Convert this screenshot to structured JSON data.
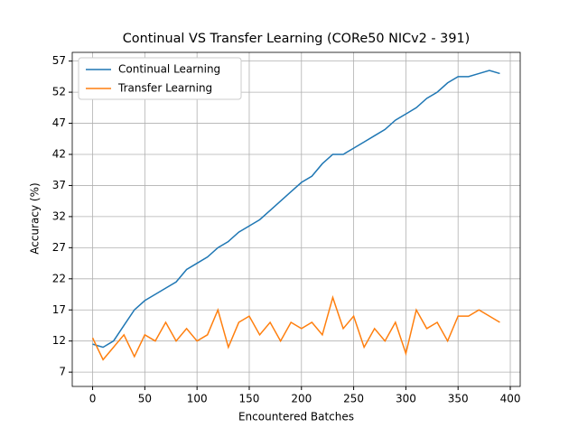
{
  "chart_data": {
    "type": "line",
    "title": "Continual VS Transfer Learning (CORe50 NICv2 - 391)",
    "xlabel": "Encountered Batches",
    "ylabel": "Accuracy (%)",
    "x": [
      0,
      10,
      20,
      30,
      40,
      50,
      60,
      70,
      80,
      90,
      100,
      110,
      120,
      130,
      140,
      150,
      160,
      170,
      180,
      190,
      200,
      210,
      220,
      230,
      240,
      250,
      260,
      270,
      280,
      290,
      300,
      310,
      320,
      330,
      340,
      350,
      360,
      370,
      380,
      390
    ],
    "series": [
      {
        "name": "Continual Learning",
        "color": "#1f77b4",
        "values": [
          11.5,
          11,
          12,
          14.5,
          17,
          18.5,
          19.5,
          20.5,
          21.5,
          23.5,
          24.5,
          25.5,
          27,
          28,
          29.5,
          30.5,
          31.5,
          33,
          34.5,
          36,
          37.5,
          38.5,
          40.5,
          42,
          42,
          43,
          44,
          45,
          46,
          47.5,
          48.5,
          49.5,
          51,
          52,
          53.5,
          54.5,
          54.5,
          55,
          55.5,
          55
        ]
      },
      {
        "name": "Transfer Learning",
        "color": "#ff7f0e",
        "values": [
          12.5,
          9,
          11,
          13,
          9.5,
          13,
          12,
          15,
          12,
          14,
          12,
          13,
          17,
          11,
          15,
          16,
          13,
          15,
          12,
          15,
          14,
          15,
          13,
          19,
          14,
          16,
          11,
          14,
          12,
          15,
          10,
          17,
          14,
          15,
          12,
          16,
          16,
          17,
          16,
          15
        ]
      }
    ],
    "xlim": [
      -19.5,
      409.5
    ],
    "xticks": [
      0,
      50,
      100,
      150,
      200,
      250,
      300,
      350,
      400
    ],
    "ylim": [
      4.7,
      58.4
    ],
    "yticks": [
      7,
      12,
      17,
      22,
      27,
      32,
      37,
      42,
      47,
      52,
      57
    ],
    "grid": true,
    "legend": "upper-left"
  }
}
